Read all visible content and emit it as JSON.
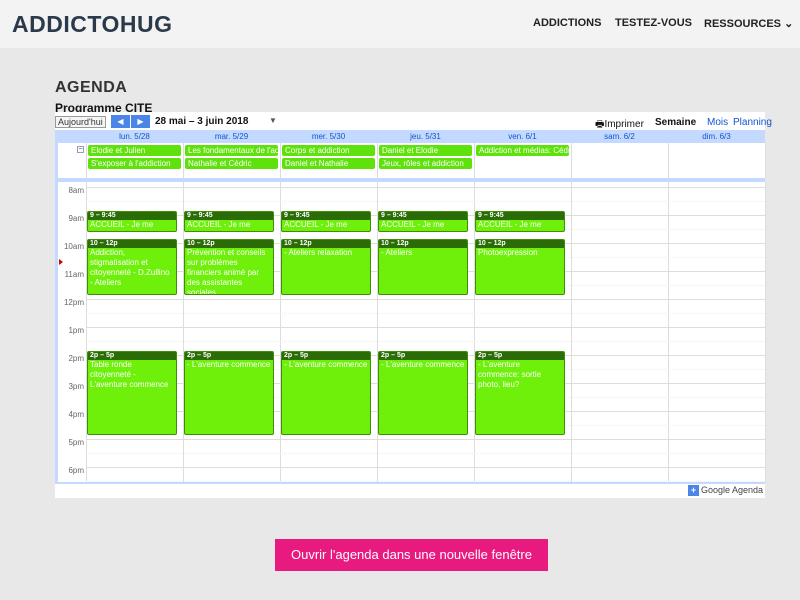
{
  "header": {
    "logo": "ADDICTOHUG",
    "nav": [
      "ADDICTIONS",
      "TESTEZ-VOUS",
      "RESSOURCES"
    ],
    "dropdown_icon": "chevron-down-icon"
  },
  "page": {
    "title": "AGENDA",
    "calendar_title": "Programme CITE"
  },
  "toolbar": {
    "today": "Aujourd'hui",
    "prev": "◀",
    "next": "▶",
    "range": "28 mai – 3 juin 2018",
    "print": "Imprimer",
    "views": [
      "Semaine",
      "Mois",
      "Planning"
    ],
    "selected_view": "Semaine"
  },
  "days": [
    "lun. 5/28",
    "mar. 5/29",
    "mer. 5/30",
    "jeu. 5/31",
    "ven. 6/1",
    "sam. 6/2",
    "dim. 6/3"
  ],
  "allday": [
    {
      "day": 0,
      "row": 0,
      "title": "Elodie et Julien"
    },
    {
      "day": 0,
      "row": 1,
      "title": "S'exposer à l'addiction"
    },
    {
      "day": 1,
      "row": 0,
      "title": "Les fondamentaux de l'addiction"
    },
    {
      "day": 1,
      "row": 1,
      "title": "Nathalie et Cédric"
    },
    {
      "day": 2,
      "row": 0,
      "title": "Corps et addiction"
    },
    {
      "day": 2,
      "row": 1,
      "title": "Daniel et Nathalie"
    },
    {
      "day": 3,
      "row": 0,
      "title": "Daniel et Elodie"
    },
    {
      "day": 3,
      "row": 1,
      "title": "Jeux, rôles et addiction"
    },
    {
      "day": 4,
      "row": 0,
      "title": "Addiction et médias: Cédric"
    }
  ],
  "times": [
    "8am",
    "9am",
    "10am",
    "11am",
    "12pm",
    "1pm",
    "2pm",
    "3pm",
    "4pm",
    "5pm",
    "6pm"
  ],
  "events": [
    {
      "day": 0,
      "start": 9,
      "end": 9.75,
      "time": "9 – 9:45",
      "title": "ACCUEIL - Je me lance"
    },
    {
      "day": 1,
      "start": 9,
      "end": 9.75,
      "time": "9 – 9:45",
      "title": "ACCUEIL - Je me lance"
    },
    {
      "day": 2,
      "start": 9,
      "end": 9.75,
      "time": "9 – 9:45",
      "title": "ACCUEIL - Je me lance"
    },
    {
      "day": 3,
      "start": 9,
      "end": 9.75,
      "time": "9 – 9:45",
      "title": "ACCUEIL - Je me lance"
    },
    {
      "day": 4,
      "start": 9,
      "end": 9.75,
      "time": "9 – 9:45",
      "title": "ACCUEIL - Je me lance"
    },
    {
      "day": 0,
      "start": 10,
      "end": 12,
      "time": "10 – 12p",
      "title": "Addiction, stigmatisation et citoyenneté - D.Zullino - Ateliers"
    },
    {
      "day": 1,
      "start": 10,
      "end": 12,
      "time": "10 – 12p",
      "title": "Prévention et conseils sur problèmes financiers animé par des assistantes sociales",
      "note": "Salle colloque au rez de chaussée, en face du secrétariat"
    },
    {
      "day": 2,
      "start": 10,
      "end": 12,
      "time": "10 – 12p",
      "title": "- Ateliers relaxation"
    },
    {
      "day": 3,
      "start": 10,
      "end": 12,
      "time": "10 – 12p",
      "title": "- Ateliers"
    },
    {
      "day": 4,
      "start": 10,
      "end": 12,
      "time": "10 – 12p",
      "title": "Photoexpression"
    },
    {
      "day": 0,
      "start": 14,
      "end": 17,
      "time": "2p – 5p",
      "title": "Table ronde citoyenneté - L'aventure commence"
    },
    {
      "day": 1,
      "start": 14,
      "end": 17,
      "time": "2p – 5p",
      "title": "- L'aventure commence"
    },
    {
      "day": 2,
      "start": 14,
      "end": 17,
      "time": "2p – 5p",
      "title": "- L'aventure commence"
    },
    {
      "day": 3,
      "start": 14,
      "end": 17,
      "time": "2p – 5p",
      "title": "- L'aventure commence"
    },
    {
      "day": 4,
      "start": 14,
      "end": 17,
      "time": "2p – 5p",
      "title": "- L'aventure commence: sortie photo, lieu?"
    }
  ],
  "footer": {
    "badge": "Google Agenda"
  },
  "cta": {
    "label": "Ouvrir l'agenda dans une nouvelle fenêtre"
  },
  "colors": {
    "event": "#6ef00a",
    "event_header": "#2b6c06",
    "cta": "#e8197f",
    "nav_button": "#4a86e8"
  }
}
